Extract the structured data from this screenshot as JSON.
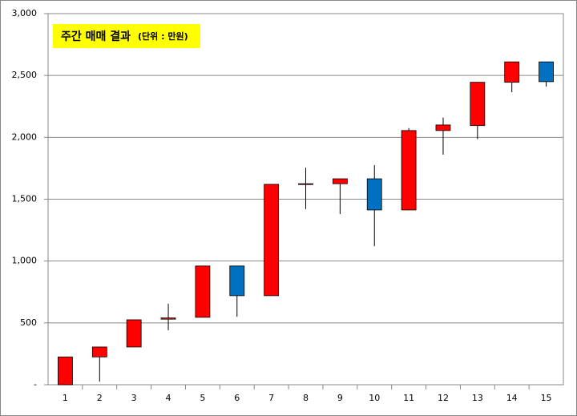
{
  "chart_data": {
    "type": "candlestick",
    "title": "주간 매매 결과",
    "subtitle": "(단위 : 만원)",
    "categories": [
      "1",
      "2",
      "3",
      "4",
      "5",
      "6",
      "7",
      "8",
      "9",
      "10",
      "11",
      "12",
      "13",
      "14",
      "15"
    ],
    "open": [
      0,
      225,
      305,
      530,
      545,
      960,
      720,
      1620,
      1625,
      1665,
      1413,
      2055,
      2095,
      2445,
      2610
    ],
    "high": [
      225,
      305,
      525,
      655,
      960,
      960,
      1620,
      1755,
      1665,
      1775,
      2075,
      2160,
      2445,
      2610,
      2610
    ],
    "low": [
      0,
      25,
      305,
      440,
      545,
      550,
      720,
      1420,
      1380,
      1120,
      1413,
      1860,
      1985,
      2365,
      2410
    ],
    "close": [
      225,
      305,
      525,
      540,
      960,
      720,
      1620,
      1625,
      1665,
      1413,
      2055,
      2100,
      2445,
      2610,
      2450
    ],
    "up_color": "#ff0000",
    "down_color": "#0070c0",
    "ylim": [
      0,
      3000
    ],
    "yticks": [
      {
        "value": 0,
        "label": "-"
      },
      500,
      {
        "value": 1000,
        "label": "1,000"
      },
      {
        "value": 1500,
        "label": "1,500"
      },
      {
        "value": 2000,
        "label": "2,000"
      },
      {
        "value": 2500,
        "label": "2,500"
      },
      {
        "value": 3000,
        "label": "3,000"
      }
    ],
    "grid": true
  }
}
